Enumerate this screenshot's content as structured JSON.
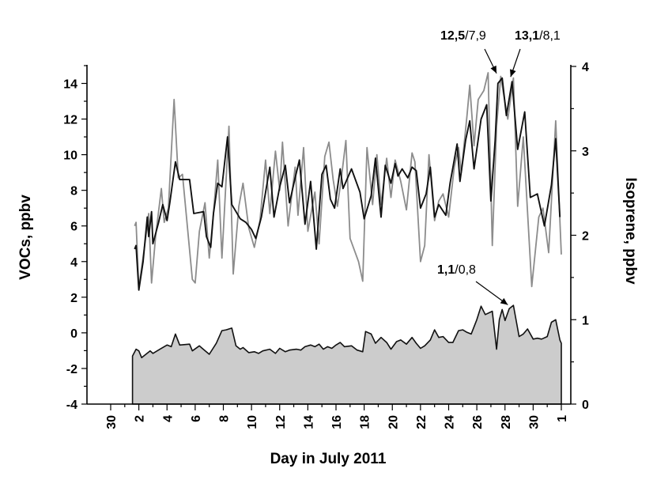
{
  "chart_data": {
    "type": "line",
    "title": "",
    "xlabel": "Day in July 2011",
    "ylabel_left": "VOCs, ppbv",
    "ylabel_right": "Isoprene, ppbv",
    "x_ticks": [
      "30",
      "2",
      "4",
      "6",
      "8",
      "10",
      "12",
      "14",
      "16",
      "18",
      "20",
      "22",
      "24",
      "26",
      "28",
      "30",
      "1"
    ],
    "xlim": [
      0,
      32
    ],
    "ylim_left": [
      -4,
      15
    ],
    "left_major_ticks": [
      -4,
      -2,
      0,
      2,
      4,
      6,
      8,
      10,
      12,
      14
    ],
    "ylim_right": [
      0,
      4
    ],
    "right_major_ticks": [
      0,
      1,
      2,
      3,
      4
    ],
    "grid": false,
    "legend": "none",
    "series": [
      {
        "axis": "left",
        "color": "#111111",
        "style": "line",
        "points": [
          [
            1.7,
            4.7
          ],
          [
            1.8,
            4.9
          ],
          [
            2.0,
            2.4
          ],
          [
            2.3,
            4.0
          ],
          [
            2.6,
            6.5
          ],
          [
            2.7,
            5.4
          ],
          [
            2.9,
            6.8
          ],
          [
            3.0,
            5.0
          ],
          [
            3.4,
            6.2
          ],
          [
            3.7,
            7.2
          ],
          [
            4.0,
            6.3
          ],
          [
            4.2,
            7.3
          ],
          [
            4.6,
            9.6
          ],
          [
            4.9,
            8.6
          ],
          [
            5.6,
            8.6
          ],
          [
            5.9,
            6.7
          ],
          [
            6.6,
            6.8
          ],
          [
            6.8,
            5.4
          ],
          [
            7.1,
            4.8
          ],
          [
            7.3,
            6.7
          ],
          [
            7.6,
            8.4
          ],
          [
            7.9,
            8.2
          ],
          [
            8.3,
            11.0
          ],
          [
            8.6,
            7.2
          ],
          [
            9.2,
            6.4
          ],
          [
            9.6,
            6.2
          ],
          [
            10.0,
            5.8
          ],
          [
            10.3,
            5.3
          ],
          [
            10.7,
            6.5
          ],
          [
            11.3,
            9.3
          ],
          [
            11.6,
            6.5
          ],
          [
            12.0,
            8.2
          ],
          [
            12.4,
            9.4
          ],
          [
            12.7,
            7.3
          ],
          [
            13.1,
            8.7
          ],
          [
            13.4,
            9.7
          ],
          [
            13.8,
            6.1
          ],
          [
            14.2,
            8.5
          ],
          [
            14.6,
            4.7
          ],
          [
            15.0,
            8.9
          ],
          [
            15.3,
            9.4
          ],
          [
            15.6,
            7.5
          ],
          [
            15.9,
            7.0
          ],
          [
            16.3,
            9.2
          ],
          [
            16.5,
            8.1
          ],
          [
            17.1,
            9.2
          ],
          [
            17.7,
            7.9
          ],
          [
            18.0,
            6.4
          ],
          [
            18.5,
            7.7
          ],
          [
            18.8,
            9.8
          ],
          [
            19.2,
            6.5
          ],
          [
            19.5,
            9.4
          ],
          [
            19.9,
            8.4
          ],
          [
            20.2,
            9.5
          ],
          [
            20.4,
            8.8
          ],
          [
            20.7,
            9.2
          ],
          [
            21.1,
            8.7
          ],
          [
            21.4,
            9.3
          ],
          [
            21.7,
            9.1
          ],
          [
            22.0,
            7.0
          ],
          [
            22.4,
            7.8
          ],
          [
            22.7,
            9.3
          ],
          [
            23.0,
            6.5
          ],
          [
            23.3,
            7.2
          ],
          [
            23.8,
            6.6
          ],
          [
            24.1,
            8.4
          ],
          [
            24.6,
            10.6
          ],
          [
            24.8,
            8.5
          ],
          [
            25.2,
            10.8
          ],
          [
            25.5,
            11.9
          ],
          [
            25.8,
            9.2
          ],
          [
            26.3,
            12.0
          ],
          [
            26.7,
            12.8
          ],
          [
            27.0,
            7.4
          ],
          [
            27.3,
            10.8
          ],
          [
            27.5,
            14.0
          ],
          [
            27.8,
            14.3
          ],
          [
            28.1,
            12.2
          ],
          [
            28.5,
            14.1
          ],
          [
            28.9,
            10.3
          ],
          [
            29.4,
            12.4
          ],
          [
            29.8,
            7.6
          ],
          [
            30.3,
            7.8
          ],
          [
            30.8,
            6.0
          ],
          [
            31.3,
            8.3
          ],
          [
            31.6,
            10.9
          ],
          [
            31.9,
            6.5
          ]
        ]
      },
      {
        "axis": "left",
        "color": "#8c8c8c",
        "style": "line",
        "points": [
          [
            1.7,
            6.0
          ],
          [
            1.8,
            6.2
          ],
          [
            2.0,
            2.5
          ],
          [
            2.5,
            5.4
          ],
          [
            2.7,
            6.7
          ],
          [
            2.9,
            2.8
          ],
          [
            3.2,
            5.5
          ],
          [
            3.6,
            8.1
          ],
          [
            3.8,
            6.2
          ],
          [
            4.1,
            7.0
          ],
          [
            4.5,
            13.1
          ],
          [
            4.8,
            8.7
          ],
          [
            5.1,
            8.9
          ],
          [
            5.8,
            3.0
          ],
          [
            6.0,
            2.8
          ],
          [
            6.3,
            5.7
          ],
          [
            6.7,
            7.3
          ],
          [
            7.0,
            4.2
          ],
          [
            7.3,
            6.7
          ],
          [
            7.6,
            9.7
          ],
          [
            7.9,
            4.2
          ],
          [
            8.4,
            11.6
          ],
          [
            8.7,
            3.3
          ],
          [
            9.1,
            7.1
          ],
          [
            9.4,
            8.4
          ],
          [
            9.8,
            5.9
          ],
          [
            10.2,
            4.8
          ],
          [
            10.6,
            6.3
          ],
          [
            11.0,
            9.7
          ],
          [
            11.3,
            6.7
          ],
          [
            11.7,
            10.2
          ],
          [
            12.0,
            8.0
          ],
          [
            12.2,
            10.7
          ],
          [
            12.6,
            6.0
          ],
          [
            13.1,
            9.3
          ],
          [
            13.3,
            6.6
          ],
          [
            13.7,
            10.4
          ],
          [
            14.0,
            5.7
          ],
          [
            14.5,
            7.9
          ],
          [
            14.8,
            5.0
          ],
          [
            15.2,
            9.9
          ],
          [
            15.5,
            10.7
          ],
          [
            15.8,
            8.6
          ],
          [
            16.1,
            7.1
          ],
          [
            16.4,
            8.8
          ],
          [
            16.7,
            10.8
          ],
          [
            17.0,
            5.3
          ],
          [
            17.6,
            4.0
          ],
          [
            17.9,
            2.9
          ],
          [
            18.2,
            10.4
          ],
          [
            18.6,
            7.2
          ],
          [
            18.9,
            10.0
          ],
          [
            19.2,
            7.2
          ],
          [
            19.6,
            9.8
          ],
          [
            19.9,
            7.6
          ],
          [
            20.2,
            9.7
          ],
          [
            20.6,
            8.5
          ],
          [
            21.0,
            6.9
          ],
          [
            21.4,
            10.1
          ],
          [
            21.6,
            9.6
          ],
          [
            22.0,
            4.0
          ],
          [
            22.3,
            4.9
          ],
          [
            22.6,
            10.0
          ],
          [
            23.0,
            6.3
          ],
          [
            23.3,
            7.4
          ],
          [
            23.6,
            7.8
          ],
          [
            24.0,
            6.5
          ],
          [
            24.4,
            9.3
          ],
          [
            24.7,
            10.4
          ],
          [
            24.9,
            9.0
          ],
          [
            25.3,
            12.2
          ],
          [
            25.5,
            13.9
          ],
          [
            25.8,
            10.5
          ],
          [
            26.1,
            13.1
          ],
          [
            26.5,
            13.6
          ],
          [
            26.8,
            14.6
          ],
          [
            27.1,
            4.9
          ],
          [
            27.4,
            11.6
          ],
          [
            27.7,
            14.4
          ],
          [
            27.9,
            13.4
          ],
          [
            28.2,
            12.0
          ],
          [
            28.6,
            14.3
          ],
          [
            28.9,
            7.1
          ],
          [
            29.3,
            11.0
          ],
          [
            29.9,
            2.6
          ],
          [
            30.4,
            6.5
          ],
          [
            30.7,
            7.0
          ],
          [
            31.1,
            4.5
          ],
          [
            31.6,
            11.9
          ],
          [
            32.0,
            4.4
          ]
        ]
      },
      {
        "axis": "right",
        "color": "#111111",
        "fill": "#cccccc",
        "style": "area",
        "points": [
          [
            1.55,
            0.0
          ],
          [
            1.55,
            0.57
          ],
          [
            1.8,
            0.65
          ],
          [
            2.0,
            0.63
          ],
          [
            2.2,
            0.55
          ],
          [
            2.8,
            0.63
          ],
          [
            3.0,
            0.6
          ],
          [
            3.5,
            0.65
          ],
          [
            4.0,
            0.7
          ],
          [
            4.3,
            0.68
          ],
          [
            4.6,
            0.83
          ],
          [
            4.9,
            0.7
          ],
          [
            5.6,
            0.71
          ],
          [
            5.8,
            0.63
          ],
          [
            6.3,
            0.69
          ],
          [
            6.5,
            0.66
          ],
          [
            7.0,
            0.59
          ],
          [
            7.5,
            0.72
          ],
          [
            7.9,
            0.87
          ],
          [
            8.2,
            0.88
          ],
          [
            8.6,
            0.9
          ],
          [
            8.9,
            0.69
          ],
          [
            9.2,
            0.65
          ],
          [
            9.4,
            0.67
          ],
          [
            9.8,
            0.61
          ],
          [
            10.2,
            0.62
          ],
          [
            10.5,
            0.6
          ],
          [
            10.8,
            0.63
          ],
          [
            11.3,
            0.65
          ],
          [
            11.7,
            0.6
          ],
          [
            12.0,
            0.66
          ],
          [
            12.4,
            0.62
          ],
          [
            12.7,
            0.64
          ],
          [
            13.2,
            0.65
          ],
          [
            13.5,
            0.64
          ],
          [
            13.8,
            0.68
          ],
          [
            14.2,
            0.7
          ],
          [
            14.5,
            0.68
          ],
          [
            14.8,
            0.71
          ],
          [
            15.1,
            0.65
          ],
          [
            15.4,
            0.68
          ],
          [
            15.7,
            0.66
          ],
          [
            16.0,
            0.7
          ],
          [
            16.3,
            0.73
          ],
          [
            16.6,
            0.68
          ],
          [
            17.1,
            0.69
          ],
          [
            17.5,
            0.64
          ],
          [
            17.9,
            0.62
          ],
          [
            18.1,
            0.86
          ],
          [
            18.5,
            0.83
          ],
          [
            18.8,
            0.72
          ],
          [
            19.2,
            0.79
          ],
          [
            19.6,
            0.73
          ],
          [
            19.9,
            0.65
          ],
          [
            20.3,
            0.74
          ],
          [
            20.6,
            0.76
          ],
          [
            21.0,
            0.71
          ],
          [
            21.4,
            0.79
          ],
          [
            21.7,
            0.72
          ],
          [
            22.0,
            0.66
          ],
          [
            22.3,
            0.69
          ],
          [
            22.7,
            0.76
          ],
          [
            23.0,
            0.88
          ],
          [
            23.3,
            0.79
          ],
          [
            23.6,
            0.8
          ],
          [
            24.0,
            0.73
          ],
          [
            24.3,
            0.73
          ],
          [
            24.7,
            0.87
          ],
          [
            25.0,
            0.88
          ],
          [
            25.3,
            0.85
          ],
          [
            25.6,
            0.83
          ],
          [
            26.0,
            1.0
          ],
          [
            26.3,
            1.16
          ],
          [
            26.6,
            1.06
          ],
          [
            27.1,
            1.1
          ],
          [
            27.4,
            0.65
          ],
          [
            27.6,
            1.0
          ],
          [
            27.8,
            1.12
          ],
          [
            28.0,
            0.99
          ],
          [
            28.3,
            1.13
          ],
          [
            28.6,
            1.17
          ],
          [
            29.0,
            0.8
          ],
          [
            29.3,
            0.83
          ],
          [
            29.6,
            0.89
          ],
          [
            30.0,
            0.77
          ],
          [
            30.3,
            0.78
          ],
          [
            30.6,
            0.77
          ],
          [
            31.0,
            0.8
          ],
          [
            31.3,
            0.97
          ],
          [
            31.6,
            1.0
          ],
          [
            31.9,
            0.76
          ],
          [
            32.0,
            0.72
          ],
          [
            32.0,
            0.0
          ]
        ]
      }
    ],
    "annotations": [
      {
        "bold": "12,5",
        "rest": "/7,9",
        "target": [
          27.4,
          14.3
        ]
      },
      {
        "bold": "13,1",
        "rest": "/8,1",
        "target": [
          28.4,
          14.1
        ]
      },
      {
        "bold": "1,1",
        "rest": "/0,8",
        "target": [
          28.2,
          1.12
        ]
      }
    ]
  }
}
